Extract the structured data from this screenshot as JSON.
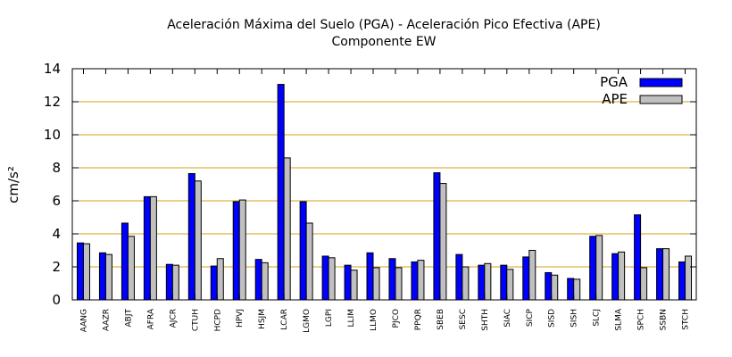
{
  "chart_data": {
    "type": "bar",
    "title": "Aceleración Máxima del Suelo (PGA) -  Aceleración Pico Efectiva (APE)",
    "subtitle": "Componente EW",
    "ylabel": "cm/s²",
    "xlabel": "",
    "ylim": [
      0,
      14
    ],
    "yticks": [
      0,
      2,
      4,
      6,
      8,
      10,
      12,
      14
    ],
    "grid": "horizontal",
    "legend_position": "top-right",
    "categories": [
      "AANG",
      "AAZR",
      "ABJT",
      "AFRA",
      "AJCR",
      "CTUH",
      "HCPD",
      "HPVJ",
      "HSJM",
      "LCAR",
      "LGMO",
      "LGPI",
      "LLIM",
      "LLMO",
      "PJCO",
      "PPQR",
      "SBEB",
      "SESC",
      "SHTH",
      "SIAC",
      "SICP",
      "SISD",
      "SISH",
      "SLCJ",
      "SLMA",
      "SPCH",
      "SSBN",
      "STCH"
    ],
    "series": [
      {
        "name": "PGA",
        "color": "#0000ff",
        "values": [
          3.45,
          2.85,
          4.65,
          6.25,
          2.15,
          7.65,
          2.05,
          5.95,
          2.45,
          13.05,
          5.95,
          2.65,
          2.1,
          2.85,
          2.5,
          2.3,
          7.7,
          2.75,
          2.1,
          2.1,
          2.6,
          1.65,
          1.3,
          3.85,
          2.8,
          5.15,
          3.1,
          2.3
        ]
      },
      {
        "name": "APE",
        "color": "#c0c0c0",
        "values": [
          3.4,
          2.75,
          3.85,
          6.25,
          2.1,
          7.2,
          2.5,
          6.05,
          2.25,
          8.6,
          4.65,
          2.55,
          1.8,
          1.95,
          1.95,
          2.4,
          7.05,
          2.0,
          2.2,
          1.85,
          3.0,
          1.5,
          1.25,
          3.9,
          2.9,
          1.95,
          3.1,
          2.65
        ]
      }
    ],
    "colors": {
      "grid": "#d4a017",
      "axis": "#000000",
      "bar_stroke": "#000000"
    }
  }
}
